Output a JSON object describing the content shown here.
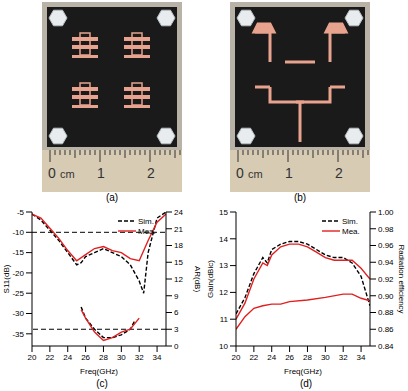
{
  "photos": [
    {
      "caption": "(a)",
      "ruler": [
        "0",
        "cm",
        "1",
        "2"
      ]
    },
    {
      "caption": "(b)",
      "ruler": [
        "0",
        "cm",
        "1",
        "2"
      ]
    }
  ],
  "chart_data": [
    {
      "type": "line",
      "caption": "(c)",
      "xlabel": "Freq(GHz)",
      "ylabel": "S11(dB)",
      "y2label": "AR(dB)",
      "xlim": [
        20,
        35
      ],
      "xticks": [
        20,
        22,
        24,
        26,
        28,
        30,
        32,
        34
      ],
      "ylim": [
        -38,
        -5
      ],
      "yticks": [
        -35,
        -30,
        -25,
        -20,
        -15,
        -10,
        -5
      ],
      "y2lim": [
        0,
        24
      ],
      "y2ticks": [
        0,
        3,
        6,
        9,
        12,
        15,
        18,
        21,
        24
      ],
      "hlines": [
        {
          "value": -10,
          "axis": "y"
        },
        {
          "value": 3,
          "axis": "y2"
        }
      ],
      "series": [
        {
          "name": "Sim.",
          "color": "#000000",
          "line_style": "dashed",
          "axis": "y",
          "x": [
            20,
            21,
            22,
            23,
            24,
            25,
            25.5,
            26,
            27,
            28,
            29,
            30,
            31,
            32,
            32.5,
            33,
            34,
            35
          ],
          "values": [
            -5.5,
            -7,
            -9.5,
            -12,
            -15,
            -18,
            -17.5,
            -16,
            -15,
            -14,
            -15,
            -16,
            -18,
            -22,
            -25,
            -15,
            -6.5,
            -5
          ]
        },
        {
          "name": "Mea.",
          "color": "#e02020",
          "line_style": "solid",
          "axis": "y",
          "x": [
            20,
            21,
            22,
            23,
            24,
            25,
            26,
            27,
            28,
            29,
            30,
            31,
            32,
            33,
            34,
            35
          ],
          "values": [
            -5.5,
            -6.5,
            -9,
            -11.5,
            -14.5,
            -17,
            -15.5,
            -14,
            -13.5,
            -14.5,
            -15,
            -16.5,
            -17,
            -12,
            -7.5,
            -5.5
          ]
        },
        {
          "name": "Sim.",
          "color": "#000000",
          "line_style": "dashed",
          "axis": "y2",
          "x": [
            25.5,
            26,
            27,
            28,
            29,
            30,
            31,
            31.5
          ],
          "values": [
            7,
            5,
            3,
            1.5,
            1.5,
            2,
            3,
            4.5
          ]
        },
        {
          "name": "Mea.",
          "color": "#e02020",
          "line_style": "solid",
          "axis": "y2",
          "x": [
            25.5,
            26,
            27,
            28,
            29,
            30,
            31,
            32
          ],
          "values": [
            6.5,
            5,
            2.5,
            1,
            1.5,
            2.5,
            3,
            5
          ]
        }
      ]
    },
    {
      "type": "line",
      "caption": "(d)",
      "xlabel": "Freq(GHz)",
      "ylabel": "Gain(dBic)",
      "y2label": "Radiation efficiency",
      "xlim": [
        20,
        35
      ],
      "xticks": [
        20,
        22,
        24,
        26,
        28,
        30,
        32,
        34
      ],
      "ylim": [
        10,
        15
      ],
      "yticks": [
        10,
        11,
        12,
        13,
        14,
        15
      ],
      "y2lim": [
        0.84,
        1.0
      ],
      "y2ticks": [
        0.84,
        0.86,
        0.88,
        {
          "value": 0.9,
          "label": "0.90"
        },
        0.92,
        0.94,
        0.96,
        0.98,
        {
          "value": 1.0,
          "label": "1.00"
        }
      ],
      "series": [
        {
          "name": "Sim.",
          "color": "#000000",
          "line_style": "dashed",
          "axis": "y",
          "x": [
            20,
            21,
            22,
            23,
            23.5,
            24,
            25,
            26,
            27,
            28,
            29,
            30,
            31,
            32,
            33,
            34,
            35
          ],
          "values": [
            11.2,
            11.8,
            12.7,
            13.3,
            13.1,
            13.6,
            13.8,
            13.9,
            13.9,
            13.8,
            13.6,
            13.4,
            13.3,
            13.3,
            13.1,
            12.6,
            11.5
          ]
        },
        {
          "name": "Mea.",
          "color": "#e02020",
          "line_style": "solid",
          "axis": "y",
          "x": [
            20,
            21,
            22,
            23,
            23.5,
            24,
            25,
            26,
            27,
            28,
            29,
            30,
            31,
            32,
            33,
            34,
            35
          ],
          "values": [
            11,
            11.6,
            12.5,
            13.1,
            13,
            13.4,
            13.7,
            13.8,
            13.8,
            13.7,
            13.5,
            13.3,
            13.2,
            13.2,
            13.2,
            12.9,
            12.5
          ]
        },
        {
          "name": "Mea.",
          "color": "#e02020",
          "line_style": "solid",
          "axis": "y2",
          "x": [
            20,
            21,
            22,
            23,
            24,
            25,
            26,
            28,
            30,
            32,
            33,
            34,
            35
          ],
          "values": [
            0.86,
            0.875,
            0.885,
            0.888,
            0.89,
            0.89,
            0.893,
            0.895,
            0.898,
            0.902,
            0.902,
            0.897,
            0.894
          ]
        }
      ]
    }
  ]
}
